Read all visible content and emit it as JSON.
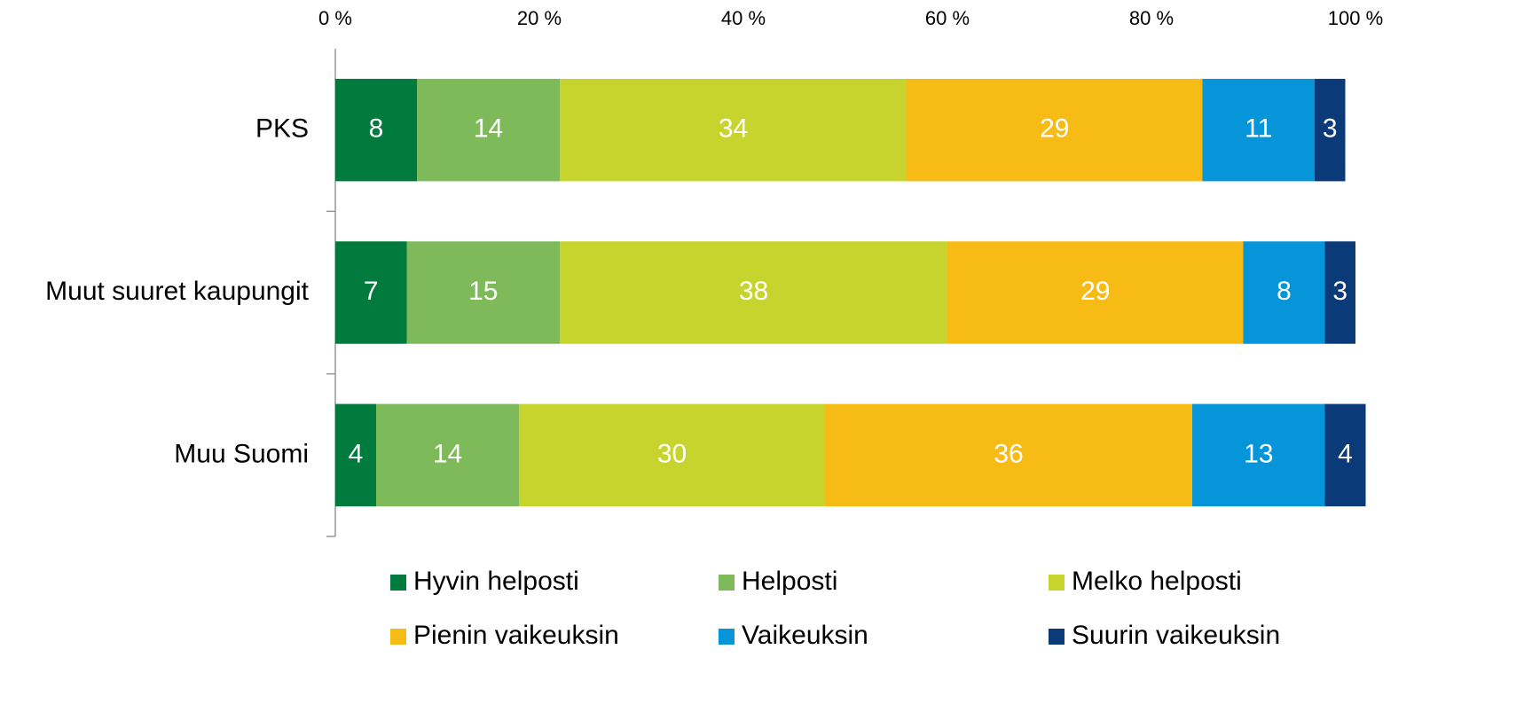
{
  "chart_data": {
    "type": "bar",
    "orientation": "horizontal",
    "stacked": true,
    "categories": [
      "PKS",
      "Muut suuret kaupungit",
      "Muu Suomi"
    ],
    "series": [
      {
        "name": "Hyvin helposti",
        "color": "#007a3d",
        "values": [
          8,
          7,
          4
        ]
      },
      {
        "name": "Helposti",
        "color": "#7fba5a",
        "values": [
          14,
          15,
          14
        ]
      },
      {
        "name": "Melko helposti",
        "color": "#c8d42e",
        "values": [
          34,
          38,
          30
        ]
      },
      {
        "name": "Pienin vaikeuksin",
        "color": "#f7bb16",
        "values": [
          29,
          29,
          36
        ]
      },
      {
        "name": "Vaikeuksin",
        "color": "#0595d8",
        "values": [
          11,
          8,
          13
        ]
      },
      {
        "name": "Suurin vaikeuksin",
        "color": "#0b3a78",
        "values": [
          3,
          3,
          4
        ]
      }
    ],
    "xlim": [
      0,
      100
    ],
    "xticks": [
      {
        "value": 0,
        "label": "0 %"
      },
      {
        "value": 20,
        "label": "20 %"
      },
      {
        "value": 40,
        "label": "40 %"
      },
      {
        "value": 60,
        "label": "60 %"
      },
      {
        "value": 80,
        "label": "80 %"
      },
      {
        "value": 100,
        "label": "100 %"
      }
    ],
    "legend": "bottom",
    "grid": false
  }
}
